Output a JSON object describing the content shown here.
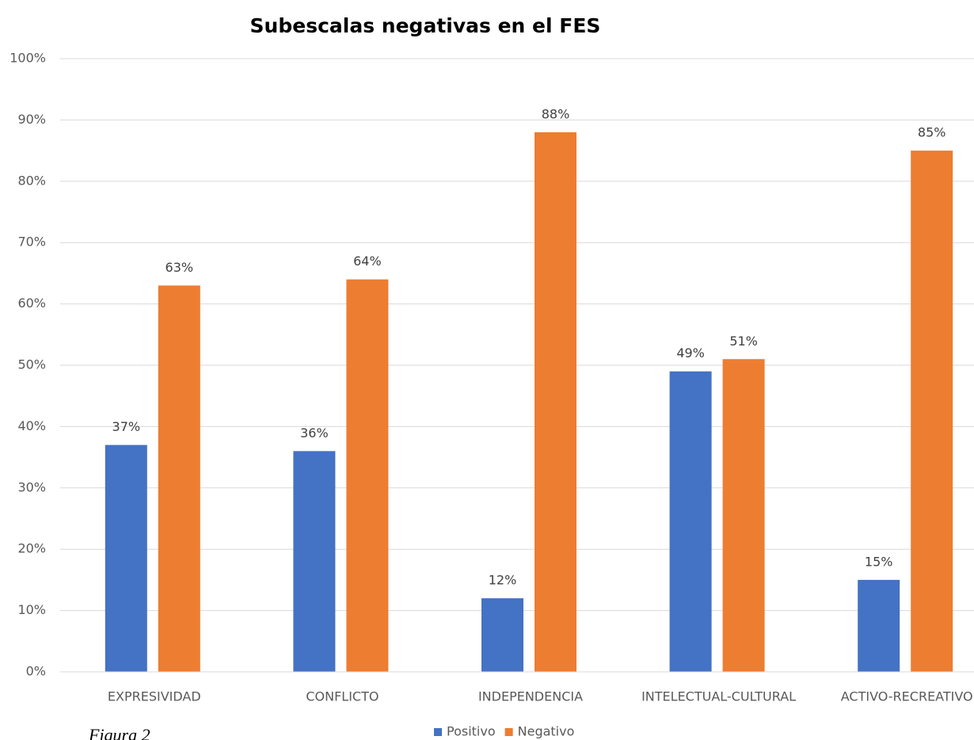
{
  "chart_data": {
    "type": "bar",
    "title": "Subescalas negativas en el FES",
    "categories": [
      "EXPRESIVIDAD",
      "CONFLICTO",
      "INDEPENDENCIA",
      "INTELECTUAL-CULTURAL",
      "ACTIVO-RECREATIVO"
    ],
    "series": [
      {
        "name": "Positivo",
        "color": "#4472c4",
        "values": [
          37,
          36,
          12,
          49,
          15
        ],
        "value_labels": [
          "37%",
          "36%",
          "12%",
          "49%",
          "15%"
        ]
      },
      {
        "name": "Negativo",
        "color": "#ed7d31",
        "values": [
          63,
          64,
          88,
          51,
          85
        ],
        "value_labels": [
          "63%",
          "64%",
          "88%",
          "51%",
          "85%"
        ]
      }
    ],
    "ylim": [
      0,
      100
    ],
    "yticks": [
      {
        "value": 0,
        "label": "0%"
      },
      {
        "value": 10,
        "label": "10%"
      },
      {
        "value": 20,
        "label": "20%"
      },
      {
        "value": 30,
        "label": "30%"
      },
      {
        "value": 40,
        "label": "40%"
      },
      {
        "value": 50,
        "label": "50%"
      },
      {
        "value": 60,
        "label": "60%"
      },
      {
        "value": 70,
        "label": "70%"
      },
      {
        "value": 80,
        "label": "80%"
      },
      {
        "value": 90,
        "label": "90%"
      },
      {
        "value": 100,
        "label": "100%"
      }
    ],
    "grid": true,
    "legend": "bottom",
    "caption": "Figura 2"
  }
}
